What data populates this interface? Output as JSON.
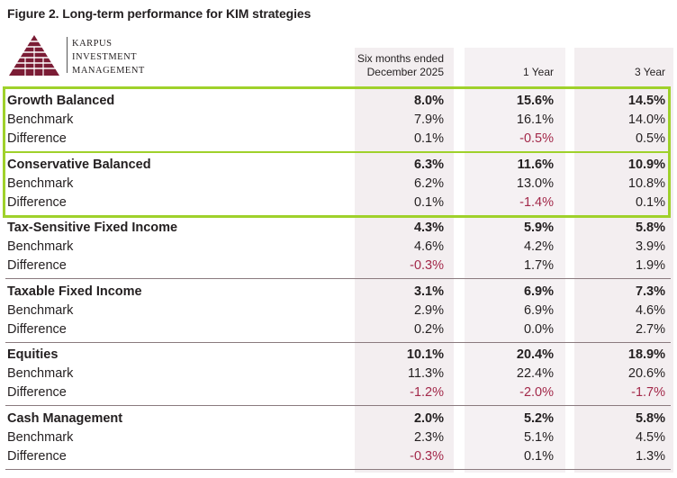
{
  "figure_title": "Figure 2. Long-term performance for KIM strategies",
  "logo": {
    "line1": "KARPUS",
    "line2": "INVESTMENT",
    "line3": "MANAGEMENT"
  },
  "headers": {
    "col1_l1": "Six months ended",
    "col1_l2": "December 2025",
    "col2": "1 Year",
    "col3": "3 Year"
  },
  "colors": {
    "negative": "#a3294a",
    "highlight": "#9fd12b",
    "column_bg": "#f3eef0"
  },
  "groups": [
    {
      "rows": [
        {
          "label": "Growth Balanced",
          "v1": "8.0%",
          "v2": "15.6%",
          "v3": "14.5%"
        },
        {
          "label": "Benchmark",
          "v1": "7.9%",
          "v2": "16.1%",
          "v3": "14.0%"
        },
        {
          "label": "Difference",
          "v1": "0.1%",
          "v2": "-0.5%",
          "v3": "0.5%"
        }
      ]
    },
    {
      "rows": [
        {
          "label": "Conservative Balanced",
          "v1": "6.3%",
          "v2": "11.6%",
          "v3": "10.9%"
        },
        {
          "label": "Benchmark",
          "v1": "6.2%",
          "v2": "13.0%",
          "v3": "10.8%"
        },
        {
          "label": "Difference",
          "v1": "0.1%",
          "v2": "-1.4%",
          "v3": "0.1%"
        }
      ]
    },
    {
      "rows": [
        {
          "label": "Tax-Sensitive Fixed Income",
          "v1": "4.3%",
          "v2": "5.9%",
          "v3": "5.8%"
        },
        {
          "label": "Benchmark",
          "v1": "4.6%",
          "v2": "4.2%",
          "v3": "3.9%"
        },
        {
          "label": "Difference",
          "v1": "-0.3%",
          "v2": "1.7%",
          "v3": "1.9%"
        }
      ]
    },
    {
      "rows": [
        {
          "label": "Taxable Fixed Income",
          "v1": "3.1%",
          "v2": "6.9%",
          "v3": "7.3%"
        },
        {
          "label": "Benchmark",
          "v1": "2.9%",
          "v2": "6.9%",
          "v3": "4.6%"
        },
        {
          "label": "Difference",
          "v1": "0.2%",
          "v2": "0.0%",
          "v3": "2.7%"
        }
      ]
    },
    {
      "rows": [
        {
          "label": "Equities",
          "v1": "10.1%",
          "v2": "20.4%",
          "v3": "18.9%"
        },
        {
          "label": "Benchmark",
          "v1": "11.3%",
          "v2": "22.4%",
          "v3": "20.6%"
        },
        {
          "label": "Difference",
          "v1": "-1.2%",
          "v2": "-2.0%",
          "v3": "-1.7%"
        }
      ]
    },
    {
      "rows": [
        {
          "label": "Cash Management",
          "v1": "2.0%",
          "v2": "5.2%",
          "v3": "5.8%"
        },
        {
          "label": "Benchmark",
          "v1": "2.3%",
          "v2": "5.1%",
          "v3": "4.5%"
        },
        {
          "label": "Difference",
          "v1": "-0.3%",
          "v2": "0.1%",
          "v3": "1.3%"
        }
      ]
    }
  ]
}
